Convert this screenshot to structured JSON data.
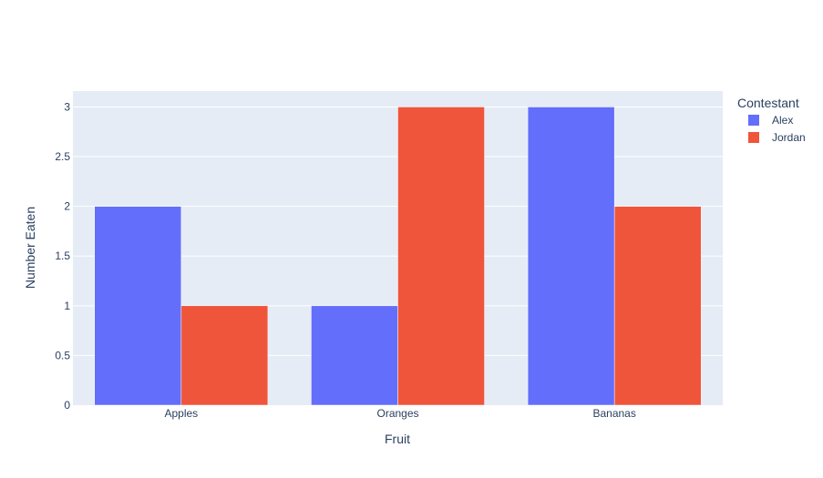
{
  "chart_data": {
    "type": "bar",
    "title": "",
    "categories": [
      "Apples",
      "Oranges",
      "Bananas"
    ],
    "series": [
      {
        "name": "Alex",
        "values": [
          2,
          1,
          3
        ],
        "color": "#636efa"
      },
      {
        "name": "Jordan",
        "values": [
          1,
          3,
          2
        ],
        "color": "#ef553b"
      }
    ],
    "xlabel": "Fruit",
    "ylabel": "Number Eaten",
    "ylim": [
      0,
      3.16
    ],
    "yticks": [
      "0",
      "0.5",
      "1",
      "1.5",
      "2",
      "2.5",
      "3"
    ],
    "grid": true,
    "legend": {
      "title": "Contestant",
      "placement": "top-right"
    },
    "colors": {
      "plot_bg": "#e5ecf6",
      "grid": "#ffffff",
      "text": "#2a3f5f"
    }
  }
}
